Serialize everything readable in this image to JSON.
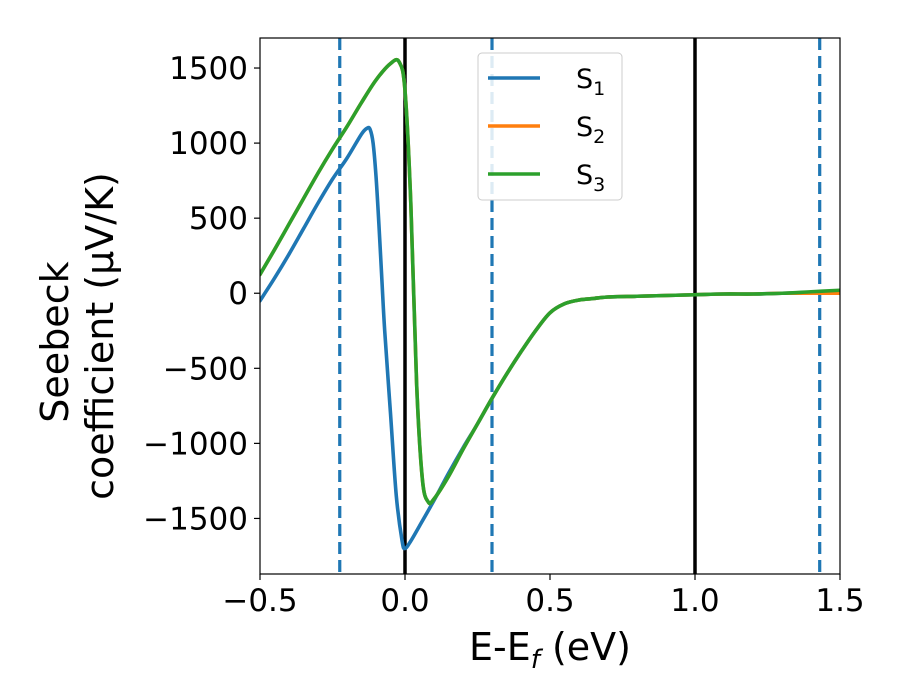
{
  "chart_data": {
    "type": "line",
    "title": "",
    "xlabel": "E-E_f (eV)",
    "xlabel_parts": {
      "main": "E-E",
      "sub": "f",
      "unit": " (eV)"
    },
    "ylabel_lines": [
      "Seebeck",
      "coefficient  (μV/K)"
    ],
    "xlim": [
      -0.5,
      1.5
    ],
    "ylim": [
      -1870,
      1700
    ],
    "xticks": [
      -0.5,
      0.0,
      0.5,
      1.0,
      1.5
    ],
    "xtick_labels": [
      "−0.5",
      "0.0",
      "0.5",
      "1.0",
      "1.5"
    ],
    "yticks": [
      -1500,
      -1000,
      -500,
      0,
      500,
      1000,
      1500
    ],
    "ytick_labels": [
      "−1500",
      "−1000",
      "−500",
      "0",
      "500",
      "1000",
      "1500"
    ],
    "grid": false,
    "legend": "upper center",
    "vlines": [
      {
        "x": -0.225,
        "style": "dashed",
        "color": "#1f77b4"
      },
      {
        "x": 0.0,
        "style": "solid",
        "color": "#000000"
      },
      {
        "x": 0.3,
        "style": "dashed",
        "color": "#1f77b4"
      },
      {
        "x": 1.0,
        "style": "solid",
        "color": "#000000"
      },
      {
        "x": 1.43,
        "style": "dashed",
        "color": "#1f77b4"
      }
    ],
    "series": [
      {
        "name": "S",
        "subscript": "1",
        "color": "#1f77b4",
        "x": [
          -0.5,
          -0.45,
          -0.4,
          -0.35,
          -0.3,
          -0.25,
          -0.2,
          -0.15,
          -0.13,
          -0.12,
          -0.11,
          -0.1,
          -0.09,
          -0.08,
          -0.07,
          -0.05,
          -0.03,
          -0.01,
          0.0,
          0.02,
          0.05,
          0.1,
          0.15,
          0.2,
          0.25,
          0.3,
          0.35,
          0.4,
          0.45,
          0.5,
          0.55,
          0.6,
          0.65,
          0.7,
          0.8,
          0.9,
          1.0,
          1.1,
          1.2,
          1.3,
          1.4,
          1.5
        ],
        "y": [
          -50,
          100,
          260,
          430,
          600,
          760,
          900,
          1060,
          1100,
          1090,
          1000,
          780,
          460,
          100,
          -250,
          -800,
          -1350,
          -1650,
          -1700,
          -1650,
          -1550,
          -1380,
          -1200,
          -1030,
          -870,
          -700,
          -540,
          -390,
          -250,
          -130,
          -70,
          -45,
          -35,
          -25,
          -20,
          -15,
          -10,
          -5,
          -5,
          0,
          5,
          10
        ]
      },
      {
        "name": "S",
        "subscript": "2",
        "color": "#ff7f0e",
        "x": [
          -0.5,
          -0.45,
          -0.4,
          -0.35,
          -0.3,
          -0.25,
          -0.2,
          -0.15,
          -0.1,
          -0.05,
          -0.02,
          0.0,
          0.02,
          0.04,
          0.06,
          0.08,
          0.1,
          0.15,
          0.2,
          0.25,
          0.3,
          0.35,
          0.4,
          0.45,
          0.5,
          0.55,
          0.6,
          0.65,
          0.7,
          0.8,
          0.9,
          1.0,
          1.1,
          1.2,
          1.3,
          1.4,
          1.5
        ],
        "y": [
          125,
          290,
          460,
          630,
          800,
          960,
          1110,
          1270,
          1420,
          1530,
          1540,
          1350,
          600,
          -600,
          -1240,
          -1390,
          -1370,
          -1220,
          -1040,
          -870,
          -700,
          -540,
          -390,
          -250,
          -130,
          -70,
          -45,
          -35,
          -25,
          -20,
          -15,
          -10,
          -5,
          -5,
          0,
          0,
          0
        ]
      },
      {
        "name": "S",
        "subscript": "3",
        "color": "#2ca02c",
        "x": [
          -0.5,
          -0.45,
          -0.4,
          -0.35,
          -0.3,
          -0.25,
          -0.2,
          -0.15,
          -0.1,
          -0.05,
          -0.02,
          0.0,
          0.02,
          0.04,
          0.06,
          0.08,
          0.1,
          0.15,
          0.2,
          0.25,
          0.3,
          0.35,
          0.4,
          0.45,
          0.5,
          0.55,
          0.6,
          0.65,
          0.7,
          0.8,
          0.9,
          1.0,
          1.1,
          1.2,
          1.3,
          1.4,
          1.5
        ],
        "y": [
          125,
          290,
          460,
          630,
          800,
          960,
          1110,
          1270,
          1420,
          1530,
          1540,
          1350,
          600,
          -600,
          -1240,
          -1390,
          -1370,
          -1220,
          -1040,
          -870,
          -700,
          -540,
          -390,
          -250,
          -130,
          -70,
          -45,
          -35,
          -25,
          -20,
          -15,
          -10,
          -5,
          -5,
          0,
          10,
          20
        ]
      }
    ]
  }
}
